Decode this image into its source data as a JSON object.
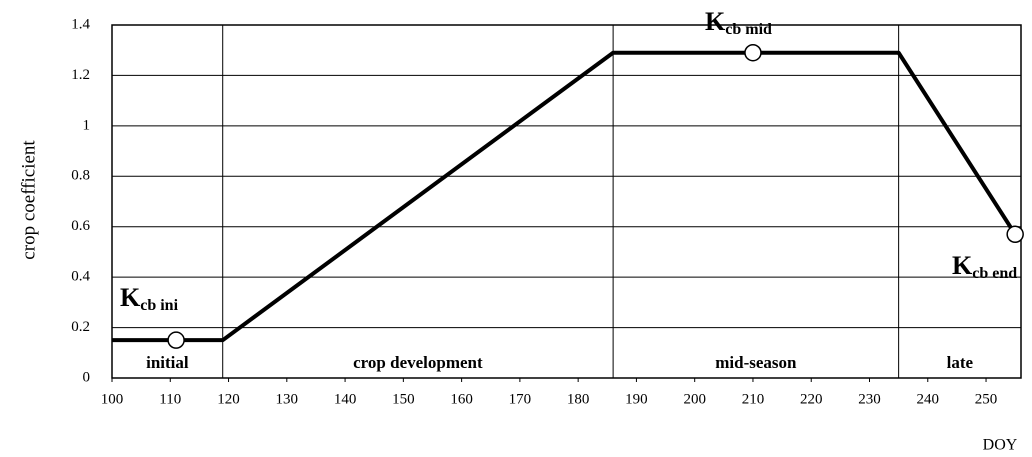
{
  "chart_data": {
    "type": "line",
    "y_label": "crop coefficient",
    "x_label": "DOY",
    "x": [
      100,
      119,
      186,
      235,
      255
    ],
    "series": [
      {
        "color": "#000000",
        "values": [
          0.15,
          0.15,
          1.29,
          1.29,
          0.57
        ]
      }
    ],
    "markers": {
      "x": [
        111,
        210,
        255
      ],
      "values": [
        0.15,
        1.29,
        0.57
      ]
    },
    "annotations": [
      {
        "main": "K",
        "sub": "cb ini"
      },
      {
        "main": "K",
        "sub": "cb mid"
      },
      {
        "main": "K",
        "sub": "cb end"
      }
    ],
    "stage_boundaries": [
      119,
      186,
      235
    ],
    "stages": [
      "initial",
      "crop development",
      "mid-season",
      "late"
    ],
    "xlim": [
      100,
      256
    ],
    "xticks": [
      100,
      110,
      120,
      130,
      140,
      150,
      160,
      170,
      180,
      190,
      200,
      210,
      220,
      230,
      240,
      250
    ],
    "ylim": [
      0,
      1.4
    ],
    "yticks": [
      0,
      0.2,
      0.4,
      0.6,
      0.8,
      1,
      1.2,
      1.4
    ],
    "grid": true
  }
}
